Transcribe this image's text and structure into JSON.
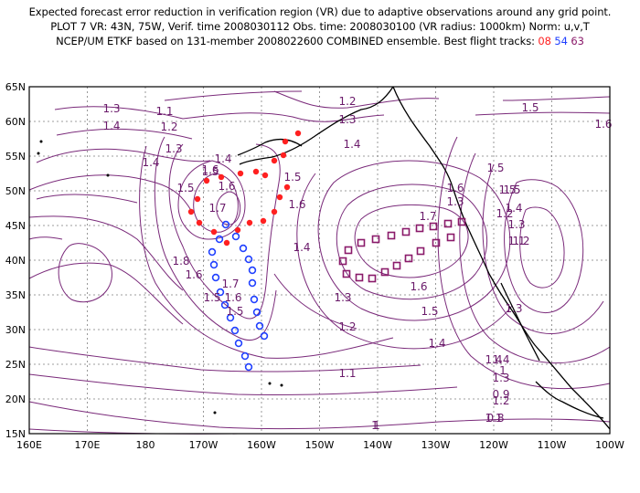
{
  "header": {
    "line1": "Expected forecast error reduction in verification region (VR) due to adaptive observations around any grid point.",
    "line2": "PLOT 7 VR: 43N, 75W, Verif. time 2008030112 Obs. time: 2008030100 (VR radius: 1000km) Norm: u,v,T",
    "line3_prefix": "NCEP/UM ETKF based on 131-member 2008022600 COMBINED ensemble.  Best flight tracks: ",
    "track_08": "08",
    "track_54": "54",
    "track_63": "63"
  },
  "colors": {
    "track_08": "#ff2020",
    "track_54": "#2040ff",
    "track_63": "#8a1a6a",
    "contour": "#7a2a7a",
    "coast": "#000000"
  },
  "map": {
    "lat_labels": [
      "65N",
      "60N",
      "55N",
      "50N",
      "45N",
      "40N",
      "35N",
      "30N",
      "25N",
      "20N",
      "15N"
    ],
    "lon_labels": [
      "160E",
      "170E",
      "180",
      "170W",
      "160W",
      "150W",
      "140W",
      "130W",
      "120W",
      "110W",
      "100W"
    ],
    "contour_labels": [
      "1.2",
      "1.3",
      "1.4",
      "1.5",
      "1.6",
      "1.1",
      "1.2",
      "1.3",
      "1.4",
      "1.5",
      "1.6",
      "1.7",
      "1.8",
      "1.6",
      "1.5",
      "1.4",
      "1.3",
      "1.2",
      "1.1",
      "1",
      "1.7",
      "1.6",
      "1.5",
      "1.4",
      "1.3",
      "1.2",
      "1.1",
      "1",
      "0.9",
      "0.8",
      "1.3",
      "1.4",
      "1.5",
      "1.6",
      "1.7",
      "1.6",
      "1.5",
      "1.4",
      "1.5",
      "1.6",
      "1.5",
      "1.4",
      "1.3",
      "1.2",
      "1.3",
      "1.4",
      "1.3",
      "1.2",
      "1.1",
      "1",
      "1.4",
      "1.5",
      "1.6",
      "1.5"
    ]
  }
}
